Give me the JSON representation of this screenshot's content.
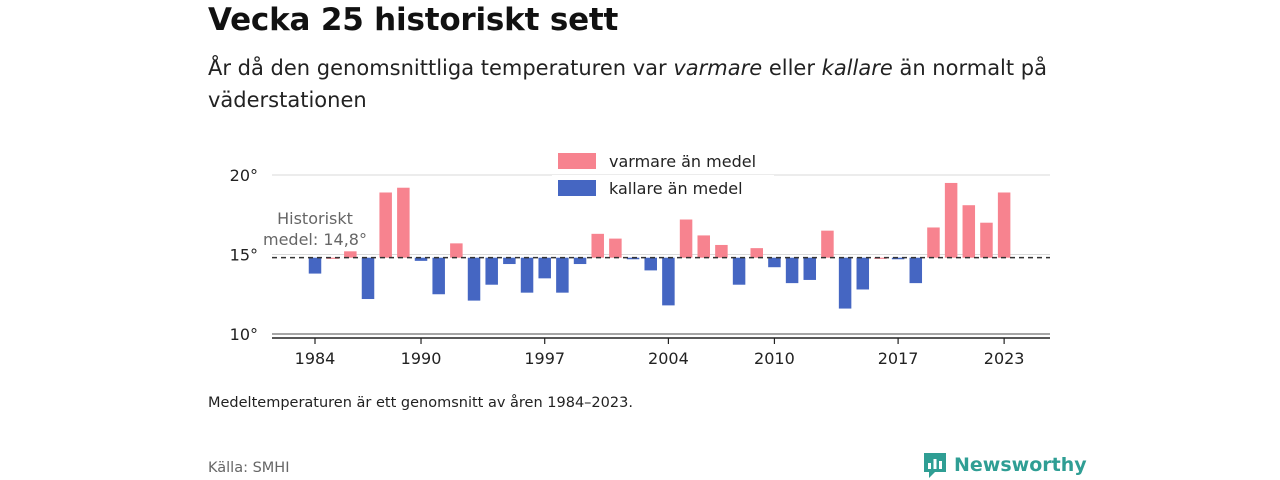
{
  "header": {
    "title": "Vecka 25 historiskt sett",
    "subtitle_pre": "År då den genomsnittliga temperaturen var ",
    "subtitle_warm": "varmare",
    "subtitle_mid": " eller ",
    "subtitle_cold": "kallare",
    "subtitle_post": " än normalt på väderstationen"
  },
  "footer": {
    "note": "Medeltemperaturen är ett genomsnitt av åren 1984–2023.",
    "source": "Källa: SMHI",
    "brand": "Newsworthy"
  },
  "colors": {
    "warm": "#f7838f",
    "cold": "#4566c2",
    "brand": "#2f9e94"
  },
  "chart_data": {
    "type": "bar",
    "baseline": 14.8,
    "baseline_label_line1": "Historiskt",
    "baseline_label_line2": "medel: 14,8°",
    "legend": [
      {
        "name": "varmare än medel",
        "color": "#f7838f"
      },
      {
        "name": "kallare än medel",
        "color": "#4566c2"
      }
    ],
    "legend_position": "top-center",
    "ylim": [
      10,
      21
    ],
    "yticks": [
      10,
      15,
      20
    ],
    "ytick_labels": [
      "10°",
      "15°",
      "20°"
    ],
    "xticks": [
      1984,
      1990,
      1997,
      2004,
      2010,
      2017,
      2023
    ],
    "grid": true,
    "x": [
      1984,
      1985,
      1986,
      1987,
      1988,
      1989,
      1990,
      1991,
      1992,
      1993,
      1994,
      1995,
      1996,
      1997,
      1998,
      1999,
      2000,
      2001,
      2002,
      2003,
      2004,
      2005,
      2006,
      2007,
      2008,
      2009,
      2010,
      2011,
      2012,
      2013,
      2014,
      2015,
      2016,
      2017,
      2018,
      2019,
      2020,
      2021,
      2022,
      2023
    ],
    "values": [
      13.8,
      14.8,
      15.2,
      12.2,
      18.9,
      19.2,
      14.6,
      12.5,
      15.7,
      12.1,
      13.1,
      14.4,
      12.6,
      13.5,
      12.6,
      14.4,
      16.3,
      16.0,
      14.7,
      14.0,
      11.8,
      17.2,
      16.2,
      15.6,
      13.1,
      15.4,
      14.2,
      13.2,
      13.4,
      16.5,
      11.6,
      12.8,
      14.8,
      14.7,
      13.2,
      16.7,
      19.5,
      18.1,
      17.0,
      18.9
    ]
  }
}
